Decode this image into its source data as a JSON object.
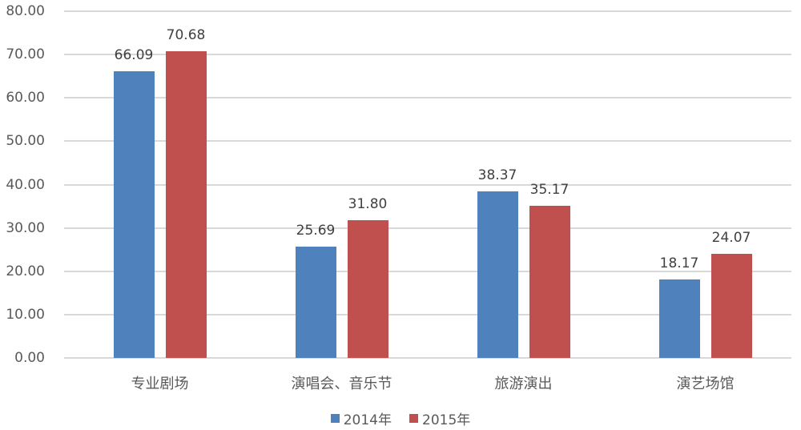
{
  "chart_data": {
    "type": "bar",
    "title": "",
    "xlabel": "",
    "ylabel": "",
    "ylim": [
      0,
      80
    ],
    "yticks": [
      "0.00",
      "10.00",
      "20.00",
      "30.00",
      "40.00",
      "50.00",
      "60.00",
      "70.00",
      "80.00"
    ],
    "grid": true,
    "legend_position": "bottom",
    "categories": [
      "专业剧场",
      "演唱会、音乐节",
      "旅游演出",
      "演艺场馆"
    ],
    "series": [
      {
        "name": "2014年",
        "color": "#4f81bd",
        "values": [
          66.09,
          25.69,
          38.37,
          18.17
        ],
        "labels": [
          "66.09",
          "25.69",
          "38.37",
          "18.17"
        ]
      },
      {
        "name": "2015年",
        "color": "#c0504d",
        "values": [
          70.68,
          31.8,
          35.17,
          24.07
        ],
        "labels": [
          "70.68",
          "31.80",
          "35.17",
          "24.07"
        ]
      }
    ]
  }
}
